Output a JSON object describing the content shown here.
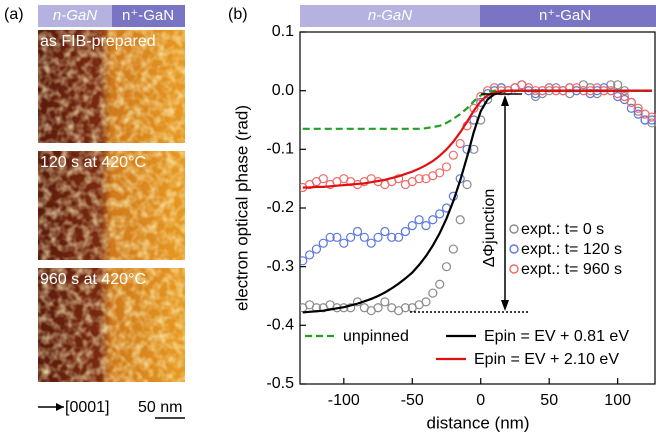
{
  "panel_a": {
    "label": "(a)",
    "header": [
      "n-GaN",
      "n⁺-GaN"
    ],
    "captions": [
      "as FIB-prepared",
      "120 s at 420°C",
      "960 s at 420°C"
    ],
    "direction": "[0001]",
    "scale_bar": "50 nm"
  },
  "chart_data": {
    "type": "line",
    "panel_label": "(b)",
    "header": [
      "n-GaN",
      "n⁺-GaN"
    ],
    "xlabel": "distance (nm)",
    "ylabel": "electron optical phase  (rad)",
    "annotation": "ΔΦjunction",
    "xlim": [
      -132,
      128
    ],
    "ylim": [
      -0.5,
      0.1
    ],
    "xticks": [
      -100,
      -50,
      0,
      50,
      100
    ],
    "yticks": [
      0.1,
      {
        "value": 0,
        "label": "0.0"
      },
      -0.1,
      -0.2,
      -0.3,
      -0.4,
      -0.5
    ],
    "legend_loc": "lower right",
    "x": [
      -130,
      -125,
      -120,
      -115,
      -110,
      -105,
      -100,
      -95,
      -90,
      -85,
      -80,
      -75,
      -70,
      -65,
      -60,
      -55,
      -50,
      -45,
      -40,
      -35,
      -30,
      -25,
      -20,
      -15,
      -10,
      -5,
      0,
      5,
      10,
      15,
      20,
      25,
      30,
      35,
      40,
      45,
      50,
      55,
      60,
      65,
      70,
      75,
      80,
      85,
      90,
      95,
      100,
      105,
      110,
      115,
      120,
      125
    ],
    "series": [
      {
        "name": "expt.: t= 0 s",
        "color": "#8a8a8a",
        "style": "markers",
        "values": [
          -0.37,
          -0.365,
          -0.37,
          -0.37,
          -0.365,
          -0.37,
          -0.37,
          -0.37,
          -0.36,
          -0.37,
          -0.375,
          -0.37,
          -0.36,
          -0.37,
          -0.375,
          -0.37,
          -0.37,
          -0.365,
          -0.36,
          -0.345,
          -0.33,
          -0.3,
          -0.27,
          -0.22,
          -0.16,
          -0.1,
          -0.05,
          -0.015,
          0.0,
          0.005,
          0.0,
          0.005,
          0.01,
          0.0,
          -0.01,
          -0.005,
          0.0,
          0.005,
          0.0,
          -0.005,
          0.0,
          0.01,
          0.005,
          -0.005,
          0.0,
          0.01,
          0.01,
          0.0,
          -0.02,
          -0.035,
          -0.05,
          -0.055
        ]
      },
      {
        "name": "expt.: t= 120 s",
        "color": "#5b78e0",
        "style": "markers",
        "values": [
          -0.29,
          -0.28,
          -0.27,
          -0.26,
          -0.25,
          -0.25,
          -0.26,
          -0.25,
          -0.24,
          -0.25,
          -0.26,
          -0.25,
          -0.24,
          -0.25,
          -0.25,
          -0.24,
          -0.23,
          -0.22,
          -0.23,
          -0.22,
          -0.21,
          -0.2,
          -0.18,
          -0.15,
          -0.1,
          -0.05,
          -0.02,
          -0.005,
          0.0,
          0.005,
          0.0,
          0.005,
          0.01,
          0.0,
          -0.005,
          0.0,
          0.005,
          0.0,
          0.0,
          0.005,
          0.0,
          0.0,
          -0.005,
          0.0,
          0.005,
          0.0,
          -0.01,
          -0.015,
          -0.03,
          -0.04,
          -0.05,
          -0.05
        ]
      },
      {
        "name": "expt.: t= 960 s",
        "color": "#f06868",
        "style": "markers",
        "values": [
          -0.165,
          -0.16,
          -0.155,
          -0.15,
          -0.16,
          -0.155,
          -0.15,
          -0.155,
          -0.16,
          -0.155,
          -0.15,
          -0.155,
          -0.16,
          -0.155,
          -0.15,
          -0.16,
          -0.155,
          -0.15,
          -0.15,
          -0.145,
          -0.14,
          -0.13,
          -0.11,
          -0.09,
          -0.06,
          -0.03,
          -0.01,
          0.0,
          0.005,
          0.0,
          0.0,
          0.005,
          0.01,
          0.005,
          0.0,
          0.0,
          0.005,
          0.0,
          0.0,
          0.005,
          0.005,
          0.0,
          0.0,
          0.005,
          0.0,
          0.0,
          -0.005,
          -0.01,
          -0.02,
          -0.03,
          -0.04,
          -0.045
        ]
      },
      {
        "name": "unpinned",
        "color": "#22a022",
        "style": "dashed",
        "values": [
          -0.065,
          -0.065,
          -0.065,
          -0.065,
          -0.065,
          -0.065,
          -0.065,
          -0.065,
          -0.065,
          -0.065,
          -0.065,
          -0.065,
          -0.065,
          -0.065,
          -0.065,
          -0.065,
          -0.065,
          -0.065,
          -0.064,
          -0.062,
          -0.06,
          -0.055,
          -0.048,
          -0.04,
          -0.03,
          -0.018,
          -0.008,
          -0.002,
          0,
          0,
          0,
          0,
          0,
          0,
          0,
          0,
          0,
          0,
          0,
          0,
          0,
          0,
          0,
          0,
          0,
          0,
          0,
          0,
          0,
          0,
          0,
          0
        ]
      },
      {
        "name": "Epin = EV + 0.81 eV",
        "color": "#000000",
        "style": "line",
        "values": [
          -0.378,
          -0.377,
          -0.376,
          -0.375,
          -0.373,
          -0.371,
          -0.369,
          -0.366,
          -0.363,
          -0.359,
          -0.355,
          -0.35,
          -0.344,
          -0.337,
          -0.329,
          -0.32,
          -0.31,
          -0.297,
          -0.282,
          -0.264,
          -0.243,
          -0.218,
          -0.188,
          -0.153,
          -0.113,
          -0.07,
          -0.035,
          -0.015,
          -0.006,
          -0.002,
          0,
          0,
          0,
          0,
          0,
          0,
          0,
          0,
          0,
          0,
          0,
          0,
          0,
          0,
          0,
          0,
          0,
          0,
          0,
          0,
          0,
          0
        ]
      },
      {
        "name": "Epin = EV + 2.10 eV",
        "color": "#e01010",
        "style": "line",
        "values": [
          -0.165,
          -0.165,
          -0.164,
          -0.164,
          -0.163,
          -0.162,
          -0.161,
          -0.16,
          -0.159,
          -0.158,
          -0.156,
          -0.154,
          -0.152,
          -0.149,
          -0.146,
          -0.142,
          -0.138,
          -0.133,
          -0.127,
          -0.12,
          -0.111,
          -0.1,
          -0.087,
          -0.071,
          -0.053,
          -0.034,
          -0.018,
          -0.008,
          -0.003,
          -0.001,
          0,
          0,
          0,
          0,
          0,
          0,
          0,
          0,
          0,
          0,
          0,
          0,
          0,
          0,
          0,
          0,
          0,
          0,
          0,
          0,
          0,
          0
        ]
      }
    ]
  }
}
